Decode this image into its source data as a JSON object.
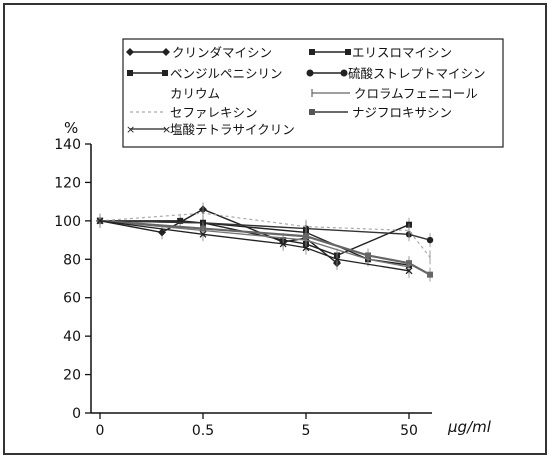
{
  "chart_data": {
    "type": "line",
    "title": "",
    "ylabel": "%",
    "xlabel": "µg/ml",
    "x_ticks": [
      "0",
      "0.5",
      "5",
      "50"
    ],
    "y_ticks": [
      0,
      20,
      40,
      60,
      80,
      100,
      120,
      140
    ],
    "ylim": [
      0,
      140
    ],
    "grid": false,
    "legend_position": "top",
    "series": [
      {
        "name": "クリンダマイシン",
        "marker": "diamond",
        "points": [
          [
            0,
            100
          ],
          [
            0.2,
            94
          ],
          [
            0.5,
            106
          ],
          [
            3,
            89
          ],
          [
            5,
            91
          ],
          [
            10,
            78
          ]
        ]
      },
      {
        "name": "エリスロマイシン",
        "marker": "square",
        "points": [
          [
            0,
            100
          ],
          [
            0.5,
            99
          ],
          [
            3,
            90
          ],
          [
            5,
            88
          ],
          [
            10,
            82
          ],
          [
            50,
            98
          ]
        ]
      },
      {
        "name": "ベンジルペニシリンカリウム",
        "marker": "square",
        "points": [
          [
            0,
            100
          ],
          [
            0.3,
            100
          ],
          [
            5,
            94
          ],
          [
            20,
            80
          ],
          [
            50,
            77
          ]
        ]
      },
      {
        "name": "硫酸ストレプトマイシン",
        "marker": "circle",
        "points": [
          [
            0,
            100
          ],
          [
            0.5,
            99
          ],
          [
            5,
            96
          ],
          [
            50,
            93
          ],
          [
            80,
            90
          ]
        ]
      },
      {
        "name": "セファレキシン",
        "marker": "none",
        "points": [
          [
            0,
            100
          ],
          [
            0.5,
            104
          ],
          [
            5,
            97
          ],
          [
            50,
            95
          ],
          [
            80,
            81
          ]
        ]
      },
      {
        "name": "クロラムフェニコール",
        "marker": "none",
        "points": [
          [
            0,
            100
          ],
          [
            0.5,
            95
          ],
          [
            5,
            90
          ],
          [
            20,
            80
          ],
          [
            50,
            76
          ]
        ]
      },
      {
        "name": "ナジフロキサシン",
        "marker": "square",
        "points": [
          [
            0,
            100
          ],
          [
            0.5,
            96
          ],
          [
            5,
            92
          ],
          [
            20,
            82
          ],
          [
            50,
            78
          ],
          [
            80,
            72
          ]
        ]
      },
      {
        "name": "塩酸テトラサイクリン",
        "marker": "x",
        "points": [
          [
            0,
            100
          ],
          [
            0.5,
            93
          ],
          [
            3,
            88
          ],
          [
            5,
            86
          ],
          [
            10,
            80
          ],
          [
            50,
            74
          ]
        ]
      }
    ]
  },
  "legend_items": [
    "クリンダマイシン",
    "エリスロマイシン",
    "ベンジルペニシリン",
    "硫酸ストレプトマイシン",
    "カリウム",
    "クロラムフェニコール",
    "セファレキシン",
    "ナジフロキサシン",
    "塩酸テトラサイクリン"
  ],
  "colors": {
    "line": "#222222",
    "light": "#999999",
    "axis": "#111111"
  }
}
